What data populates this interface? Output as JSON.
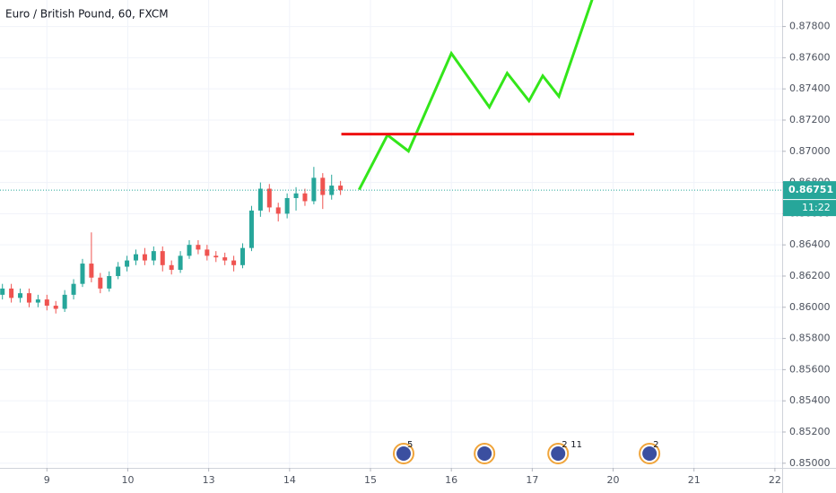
{
  "chart_data": {
    "type": "candlestick",
    "title": "Euro / British Pound, 60, FXCM",
    "x": [
      -0.55,
      -0.44,
      -0.33,
      -0.22,
      -0.11,
      0,
      0.11,
      0.22,
      0.33,
      0.44,
      0.55,
      0.66,
      0.77,
      0.88,
      0.99,
      1.1,
      1.21,
      1.32,
      1.43,
      1.54,
      1.65,
      1.76,
      1.87,
      1.98,
      2.09,
      2.2,
      2.31,
      2.42,
      2.53,
      2.64,
      2.75,
      2.86,
      2.97,
      3.08,
      3.19,
      3.3,
      3.41,
      3.52,
      3.63
    ],
    "open": [
      0.8608,
      0.8612,
      0.8606,
      0.8609,
      0.8603,
      0.8605,
      0.8601,
      0.8599,
      0.8608,
      0.8615,
      0.8628,
      0.8619,
      0.8612,
      0.862,
      0.8626,
      0.863,
      0.8634,
      0.863,
      0.8636,
      0.8627,
      0.8624,
      0.8633,
      0.864,
      0.8637,
      0.8633,
      0.8632,
      0.863,
      0.8627,
      0.8638,
      0.8662,
      0.8676,
      0.8664,
      0.866,
      0.867,
      0.8673,
      0.8668,
      0.8683,
      0.8672,
      0.8678
    ],
    "high": [
      0.8615,
      0.8615,
      0.8612,
      0.8612,
      0.8608,
      0.8608,
      0.8604,
      0.8611,
      0.8618,
      0.8631,
      0.8648,
      0.8622,
      0.8623,
      0.8629,
      0.8633,
      0.8637,
      0.8638,
      0.8639,
      0.8639,
      0.863,
      0.8636,
      0.8643,
      0.8643,
      0.864,
      0.8636,
      0.8635,
      0.8633,
      0.8641,
      0.8665,
      0.868,
      0.8679,
      0.8667,
      0.8673,
      0.8677,
      0.8676,
      0.869,
      0.8686,
      0.8685,
      0.8681
    ],
    "low": [
      0.8605,
      0.8603,
      0.8603,
      0.86,
      0.86,
      0.8598,
      0.8596,
      0.8597,
      0.8605,
      0.8613,
      0.8616,
      0.8609,
      0.861,
      0.8618,
      0.8623,
      0.8627,
      0.8627,
      0.8627,
      0.8623,
      0.8621,
      0.8622,
      0.8631,
      0.8634,
      0.863,
      0.8629,
      0.8627,
      0.8623,
      0.8625,
      0.8636,
      0.8658,
      0.8661,
      0.8655,
      0.8657,
      0.8662,
      0.8665,
      0.8666,
      0.8663,
      0.8669,
      0.8672
    ],
    "close": [
      0.8612,
      0.8606,
      0.8609,
      0.8603,
      0.8605,
      0.8601,
      0.8599,
      0.8608,
      0.8615,
      0.8628,
      0.8619,
      0.8612,
      0.862,
      0.8626,
      0.863,
      0.8634,
      0.863,
      0.8636,
      0.8627,
      0.8624,
      0.8633,
      0.864,
      0.8637,
      0.8633,
      0.8632,
      0.863,
      0.8627,
      0.8638,
      0.8662,
      0.8676,
      0.8664,
      0.866,
      0.867,
      0.8673,
      0.8668,
      0.8683,
      0.8672,
      0.8678,
      0.86751
    ],
    "up_color": "#26a69a",
    "down_color": "#ef5350",
    "xlim": [
      -0.58,
      9.09
    ],
    "xticks": [
      {
        "value": 0,
        "label": "9"
      },
      {
        "value": 1,
        "label": "10"
      },
      {
        "value": 2,
        "label": "13"
      },
      {
        "value": 3,
        "label": "14"
      },
      {
        "value": 4,
        "label": "15"
      },
      {
        "value": 5,
        "label": "16"
      },
      {
        "value": 6,
        "label": "17"
      },
      {
        "value": 7,
        "label": "20"
      },
      {
        "value": 8,
        "label": "21"
      },
      {
        "value": 9,
        "label": "22"
      }
    ],
    "ylim": [
      0.8497,
      0.8797
    ],
    "yticks": [
      {
        "value": 0.85,
        "label": "0.85000"
      },
      {
        "value": 0.852,
        "label": "0.85200"
      },
      {
        "value": 0.854,
        "label": "0.85400"
      },
      {
        "value": 0.856,
        "label": "0.85600"
      },
      {
        "value": 0.858,
        "label": "0.85800"
      },
      {
        "value": 0.86,
        "label": "0.86000"
      },
      {
        "value": 0.862,
        "label": "0.86200"
      },
      {
        "value": 0.864,
        "label": "0.86400"
      },
      {
        "value": 0.866,
        "label": "0.86600"
      },
      {
        "value": 0.868,
        "label": "0.86800"
      },
      {
        "value": 0.87,
        "label": "0.87000"
      },
      {
        "value": 0.872,
        "label": "0.87200"
      },
      {
        "value": 0.874,
        "label": "0.87400"
      },
      {
        "value": 0.876,
        "label": "0.87600"
      },
      {
        "value": 0.878,
        "label": "0.87800"
      }
    ],
    "grid": true,
    "last_price": 0.86751,
    "countdown": "11:22",
    "drawings": [
      {
        "color": "#33e61a",
        "x": [
          3.86,
          4.21,
          4.47,
          5.0,
          5.47,
          5.69,
          5.96,
          6.13,
          6.33,
          6.74
        ],
        "y": [
          0.86754,
          0.87104,
          0.87001,
          0.87628,
          0.87283,
          0.87501,
          0.87323,
          0.87484,
          0.87352,
          0.87972
        ]
      },
      {
        "color": "#ee1111",
        "x": [
          3.64,
          7.26
        ],
        "y": [
          0.8711,
          0.8711
        ]
      }
    ],
    "events": [
      {
        "x": 4.41,
        "labels": [
          "5"
        ]
      },
      {
        "x": 5.41
      },
      {
        "x": 6.32,
        "labels": [
          "2",
          "11"
        ]
      },
      {
        "x": 7.45,
        "labels": [
          "2"
        ]
      }
    ]
  }
}
